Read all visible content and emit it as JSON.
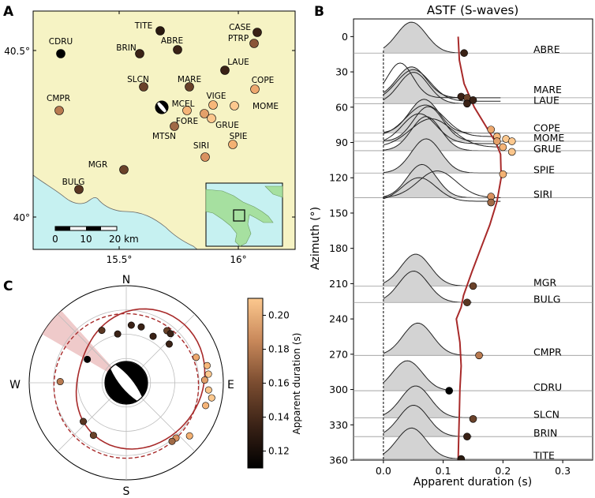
{
  "panels": {
    "a": {
      "label": "A"
    },
    "b": {
      "label": "B",
      "title": "ASTF (S-waves)"
    },
    "c": {
      "label": "C"
    }
  },
  "map": {
    "lat_ticks": [
      "40.5°",
      "40°"
    ],
    "lon_ticks": [
      "15.5°",
      "16°"
    ],
    "scale_bar": {
      "labels": [
        "0",
        "10",
        "20 km"
      ]
    },
    "land_color": "#f6f3c4",
    "sea_color": "#c6f1f1",
    "stations": [
      {
        "name": "CDRU",
        "color": "#000000"
      },
      {
        "name": "TITE",
        "color": "#2a1a10"
      },
      {
        "name": "CASE",
        "color": "#3a2216"
      },
      {
        "name": "PTRP",
        "color": "#8a5538"
      },
      {
        "name": "ABRE",
        "color": "#3a2216"
      },
      {
        "name": "BRIN",
        "color": "#3a2216"
      },
      {
        "name": "LAUE",
        "color": "#3a2216"
      },
      {
        "name": "CMPR",
        "color": "#b87a50"
      },
      {
        "name": "SLCN",
        "color": "#6a422a"
      },
      {
        "name": "MARE",
        "color": "#6a422a"
      },
      {
        "name": "COPE",
        "color": "#eda86e"
      },
      {
        "name": "VIGE",
        "color": "#f7b77a"
      },
      {
        "name": "MOME",
        "color": "#fcc88e"
      },
      {
        "name": "MCEL",
        "color": "#f5b478"
      },
      {
        "name": "FORE",
        "color": "#e3a06a"
      },
      {
        "name": "GRUE",
        "color": "#fbc68c"
      },
      {
        "name": "MTSN",
        "color": "#a06a46"
      },
      {
        "name": "SPIE",
        "color": "#f3b173"
      },
      {
        "name": "SIRI",
        "color": "#d99260"
      },
      {
        "name": "MGR",
        "color": "#6a422a"
      },
      {
        "name": "BULG",
        "color": "#5a3622"
      }
    ]
  },
  "chart_data": [
    {
      "type": "area",
      "title": "ASTF (S-waves)",
      "xlabel": "Apparent duration (s)",
      "ylabel": "Azimuth (°)",
      "xlim": [
        -0.05,
        0.35
      ],
      "ylim": [
        360,
        -15
      ],
      "xticks": [
        "0.0",
        "0.1",
        "0.2",
        "0.3"
      ],
      "yticks": [
        "0",
        "30",
        "60",
        "90",
        "120",
        "150",
        "180",
        "210",
        "240",
        "270",
        "300",
        "330",
        "360"
      ],
      "astf_labels": [
        {
          "name": "ABRE",
          "azimuth": 14,
          "duration": 0.13
        },
        {
          "name": "MARE",
          "azimuth": 52,
          "duration": 0.13
        },
        {
          "name": "LAUE",
          "azimuth": 57,
          "duration": 0.14
        },
        {
          "name": "COPE",
          "azimuth": 82,
          "duration": 0.19
        },
        {
          "name": "MOME",
          "azimuth": 89,
          "duration": 0.21
        },
        {
          "name": "GRUE",
          "azimuth": 97,
          "duration": 0.2
        },
        {
          "name": "SPIE",
          "azimuth": 116,
          "duration": 0.2
        },
        {
          "name": "SIRI",
          "azimuth": 137,
          "duration": 0.18
        },
        {
          "name": "MGR",
          "azimuth": 212,
          "duration": 0.15
        },
        {
          "name": "BULG",
          "azimuth": 226,
          "duration": 0.14
        },
        {
          "name": "CMPR",
          "azimuth": 271,
          "duration": 0.16
        },
        {
          "name": "CDRU",
          "azimuth": 301,
          "duration": 0.11
        },
        {
          "name": "SLCN",
          "azimuth": 324,
          "duration": 0.15
        },
        {
          "name": "BRIN",
          "azimuth": 340,
          "duration": 0.14
        },
        {
          "name": "TITE",
          "azimuth": 359,
          "duration": 0.13
        }
      ],
      "points": [
        {
          "azimuth": 14,
          "duration": 0.135,
          "color": "#3a2216"
        },
        {
          "azimuth": 51,
          "duration": 0.13,
          "color": "#3a2216"
        },
        {
          "azimuth": 52,
          "duration": 0.14,
          "color": "#6a422a"
        },
        {
          "azimuth": 54,
          "duration": 0.15,
          "color": "#3a2216"
        },
        {
          "azimuth": 57,
          "duration": 0.14,
          "color": "#3a2216"
        },
        {
          "azimuth": 79,
          "duration": 0.18,
          "color": "#eda86e"
        },
        {
          "azimuth": 85,
          "duration": 0.19,
          "color": "#f7b77a"
        },
        {
          "azimuth": 87,
          "duration": 0.205,
          "color": "#fcc88e"
        },
        {
          "azimuth": 89,
          "duration": 0.19,
          "color": "#e3a06a"
        },
        {
          "azimuth": 89,
          "duration": 0.215,
          "color": "#fcc88e"
        },
        {
          "azimuth": 94,
          "duration": 0.2,
          "color": "#f5b478"
        },
        {
          "azimuth": 98,
          "duration": 0.215,
          "color": "#fbc68c"
        },
        {
          "azimuth": 117,
          "duration": 0.2,
          "color": "#f3b173"
        },
        {
          "azimuth": 136,
          "duration": 0.18,
          "color": "#d99260"
        },
        {
          "azimuth": 141,
          "duration": 0.18,
          "color": "#a06a46"
        },
        {
          "azimuth": 212,
          "duration": 0.15,
          "color": "#6a422a"
        },
        {
          "azimuth": 226,
          "duration": 0.14,
          "color": "#5a3622"
        },
        {
          "azimuth": 271,
          "duration": 0.16,
          "color": "#b87a50"
        },
        {
          "azimuth": 301,
          "duration": 0.11,
          "color": "#000000"
        },
        {
          "azimuth": 325,
          "duration": 0.15,
          "color": "#6a422a"
        },
        {
          "azimuth": 340,
          "duration": 0.14,
          "color": "#3a2216"
        },
        {
          "azimuth": 359,
          "duration": 0.13,
          "color": "#2a1a10"
        }
      ],
      "directivity_curve": {
        "azimuths": [
          0,
          20,
          40,
          60,
          80,
          90,
          100,
          120,
          140,
          160,
          180,
          200,
          220,
          230,
          240,
          260,
          280,
          300,
          320,
          340,
          360
        ],
        "durations": [
          0.125,
          0.127,
          0.135,
          0.152,
          0.176,
          0.188,
          0.196,
          0.197,
          0.19,
          0.178,
          0.163,
          0.148,
          0.134,
          0.13,
          0.122,
          0.128,
          0.13,
          0.128,
          0.127,
          0.126,
          0.125
        ]
      }
    },
    {
      "type": "scatter",
      "subtype": "polar",
      "cardinal_labels": [
        "N",
        "E",
        "S",
        "W"
      ],
      "colorbar": {
        "label": "Apparent duration (s)",
        "ticks": [
          "0.20",
          "0.18",
          "0.16",
          "0.14",
          "0.12"
        ],
        "range": [
          0.11,
          0.21
        ]
      },
      "points": [
        {
          "azimuth": 335,
          "duration": 0.14,
          "color": "#5a3622"
        },
        {
          "azimuth": 350,
          "duration": 0.12,
          "color": "#3a2216"
        },
        {
          "azimuth": 5,
          "duration": 0.14,
          "color": "#3a2216"
        },
        {
          "azimuth": 15,
          "duration": 0.14,
          "color": "#3a2216"
        },
        {
          "azimuth": 30,
          "duration": 0.13,
          "color": "#3a2216"
        },
        {
          "azimuth": 38,
          "duration": 0.16,
          "color": "#6a422a"
        },
        {
          "azimuth": 42,
          "duration": 0.16,
          "color": "#3a2216"
        },
        {
          "azimuth": 48,
          "duration": 0.14,
          "color": "#3a2216"
        },
        {
          "azimuth": 70,
          "duration": 0.18,
          "color": "#eda86e"
        },
        {
          "azimuth": 78,
          "duration": 0.2,
          "color": "#f7b77a"
        },
        {
          "azimuth": 84,
          "duration": 0.2,
          "color": "#fcc88e"
        },
        {
          "azimuth": 88,
          "duration": 0.19,
          "color": "#e3a06a"
        },
        {
          "azimuth": 95,
          "duration": 0.2,
          "color": "#fbc68c"
        },
        {
          "azimuth": 100,
          "duration": 0.21,
          "color": "#fcc88e"
        },
        {
          "azimuth": 106,
          "duration": 0.2,
          "color": "#f5b478"
        },
        {
          "azimuth": 130,
          "duration": 0.2,
          "color": "#f3b173"
        },
        {
          "azimuth": 138,
          "duration": 0.18,
          "color": "#d99260"
        },
        {
          "azimuth": 142,
          "duration": 0.18,
          "color": "#a06a46"
        },
        {
          "azimuth": 212,
          "duration": 0.15,
          "color": "#6a422a"
        },
        {
          "azimuth": 228,
          "duration": 0.14,
          "color": "#5a3622"
        },
        {
          "azimuth": 271,
          "duration": 0.16,
          "color": "#b87a50"
        },
        {
          "azimuth": 301,
          "duration": 0.11,
          "color": "#000000"
        }
      ]
    }
  ]
}
